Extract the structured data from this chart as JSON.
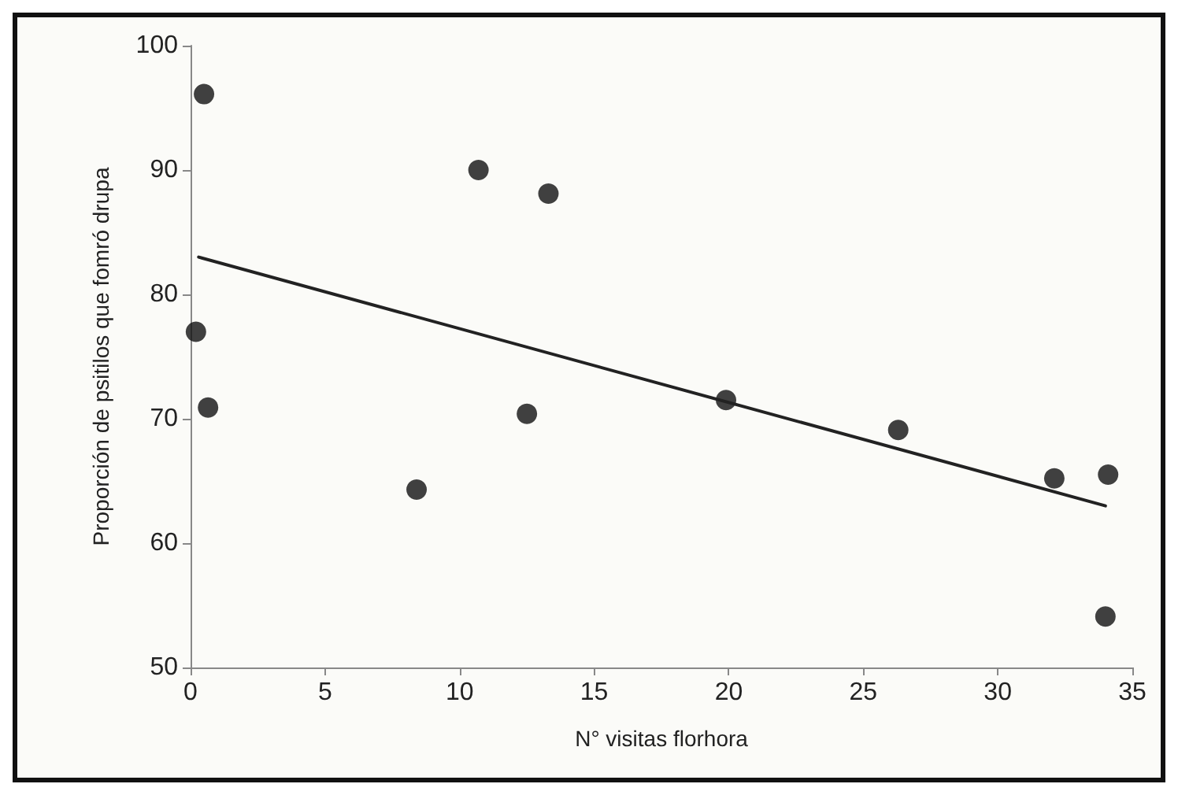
{
  "chart_data": {
    "type": "scatter",
    "xlabel": "N° visitas florhora",
    "ylabel": "Proporción de psitilos que fomró drupa",
    "x": [
      0.2,
      0.5,
      0.65,
      8.4,
      10.7,
      13.3,
      12.5,
      19.9,
      26.3,
      32.1,
      34.1,
      34.0
    ],
    "series": [
      {
        "color": "#111111",
        "values": [
          77,
          96.1,
          70.9,
          64.3,
          90,
          88.1,
          70.4,
          71.5,
          69.1,
          65.2,
          65.5,
          54.1
        ]
      },
      {
        "type": "line",
        "color": "#222222",
        "x": [
          0.3,
          34.0
        ],
        "values": [
          83.0,
          63.0
        ],
        "marker": "none"
      }
    ],
    "marker": "circle",
    "xlim": [
      0,
      35
    ],
    "xticks": [
      0,
      5,
      10,
      15,
      20,
      25,
      30,
      35
    ],
    "ylim": [
      50,
      100
    ],
    "yticks": [
      50,
      60,
      70,
      80,
      90,
      100
    ]
  }
}
